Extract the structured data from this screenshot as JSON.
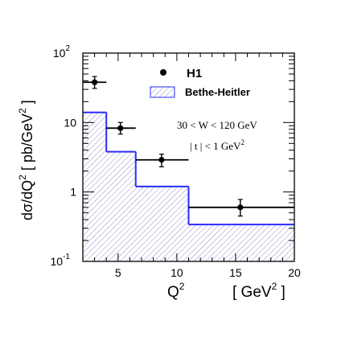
{
  "chart_data": {
    "type": "bar",
    "yscale": "log",
    "xlim": [
      2,
      20
    ],
    "ylim": [
      0.1,
      100
    ],
    "x_ticks": [
      5,
      10,
      15,
      20
    ],
    "x_tick_labels": [
      "5",
      "10",
      "15",
      "20"
    ],
    "y_ticks": [
      0.1,
      1,
      10,
      100
    ],
    "y_tick_labels": [
      {
        "base": "10",
        "exp": "-1"
      },
      {
        "base": "1",
        "exp": ""
      },
      {
        "base": "10",
        "exp": ""
      },
      {
        "base": "10",
        "exp": "2"
      }
    ],
    "xlabel": {
      "base": "Q",
      "exp": "2",
      "unit_base": "[ GeV",
      "unit_exp": "2",
      "unit_close": " ]"
    },
    "ylabel": {
      "base": "dσ/dQ",
      "exp": "2",
      "unit_base": " [ pb/GeV",
      "unit_exp": "2",
      "unit_close": " ]"
    },
    "legend": {
      "position": "top-right",
      "entries": [
        {
          "label": "H1",
          "marker": "filled-circle"
        },
        {
          "label": "Bethe-Heitler",
          "marker": "hatched-box"
        }
      ]
    },
    "annotations": [
      {
        "text": "30 <  W < 120 GeV"
      },
      {
        "base": "| t | < 1 GeV",
        "exp": "2"
      }
    ],
    "series": [
      {
        "name": "H1",
        "kind": "points-with-errors",
        "color": "#000000",
        "points": [
          {
            "x": 3.0,
            "y": 38.0,
            "xlo": 2.0,
            "xhi": 4.0,
            "ylo": 31.0,
            "yhi": 46.0
          },
          {
            "x": 5.2,
            "y": 8.3,
            "xlo": 4.0,
            "xhi": 6.5,
            "ylo": 6.8,
            "yhi": 10.0
          },
          {
            "x": 8.7,
            "y": 2.9,
            "xlo": 6.5,
            "xhi": 11.0,
            "ylo": 2.3,
            "yhi": 3.5
          },
          {
            "x": 15.4,
            "y": 0.6,
            "xlo": 11.0,
            "xhi": 20.0,
            "ylo": 0.45,
            "yhi": 0.78
          }
        ]
      },
      {
        "name": "Bethe-Heitler",
        "kind": "histogram",
        "color": "#2b2bff",
        "fill": "hatched",
        "bins": [
          {
            "lo": 2.0,
            "hi": 4.0,
            "value": 14.0
          },
          {
            "lo": 4.0,
            "hi": 6.5,
            "value": 3.8
          },
          {
            "lo": 6.5,
            "hi": 11.0,
            "value": 1.2
          },
          {
            "lo": 11.0,
            "hi": 20.0,
            "value": 0.34
          }
        ]
      }
    ],
    "grid": false
  }
}
